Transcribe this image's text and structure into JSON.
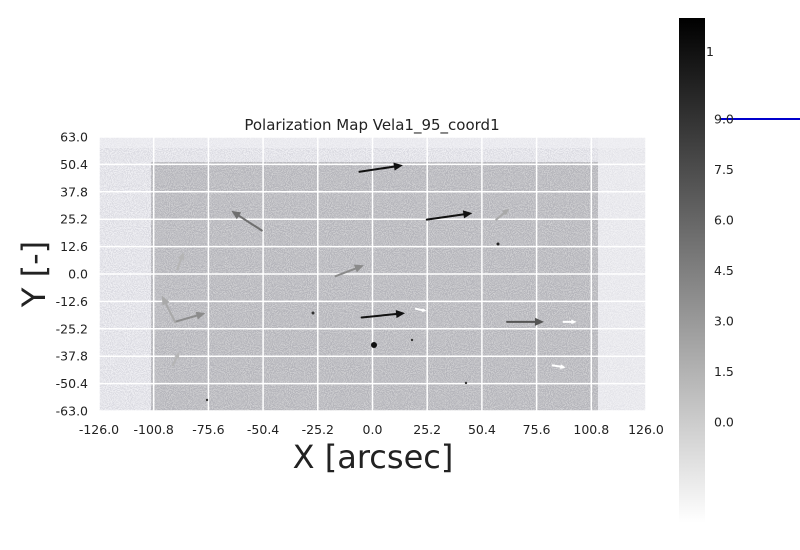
{
  "chart_data": {
    "type": "heatmap",
    "title": "Polarization Map Vela1_95_coord1",
    "xlabel": "X [arcsec]",
    "ylabel": "Y [-]",
    "xlim": [
      -126.0,
      126.0
    ],
    "ylim": [
      -63.0,
      63.0
    ],
    "x_ticks": [
      "-126.0",
      "-100.8",
      "-75.6",
      "-50.4",
      "-25.2",
      "0.0",
      "25.2",
      "50.4",
      "75.6",
      "100.8",
      "126.0"
    ],
    "y_ticks": [
      "63.0",
      "50.4",
      "37.8",
      "25.2",
      "12.6",
      "0.0",
      "-12.6",
      "-25.2",
      "-37.8",
      "-50.4",
      "-63.0"
    ],
    "colorbar": {
      "cmap": "gray_r",
      "range": [
        -3.0,
        12.0
      ],
      "ticks": [
        "0.0",
        "1.5",
        "3.0",
        "4.5",
        "6.0",
        "7.5",
        "9.0"
      ],
      "clipped_label": "1",
      "marker_value": 9.0,
      "marker_color": "#0000cc"
    },
    "vectors": [
      {
        "x": -6,
        "y": 47,
        "dx": 20,
        "dy": 3,
        "shade": "#111111"
      },
      {
        "x": 25,
        "y": 25,
        "dx": 21,
        "dy": 3,
        "shade": "#111111"
      },
      {
        "x": -5,
        "y": -20,
        "dx": 20,
        "dy": 2,
        "shade": "#111111"
      },
      {
        "x": 62,
        "y": -22,
        "dx": 17,
        "dy": 0,
        "shade": "#555555"
      },
      {
        "x": -51,
        "y": 20,
        "dx": -14,
        "dy": 9,
        "shade": "#6e6e6e"
      },
      {
        "x": -17,
        "y": -1,
        "dx": 13,
        "dy": 5,
        "shade": "#8a8a8a"
      },
      {
        "x": -91,
        "y": -22,
        "dx": 14,
        "dy": 4,
        "shade": "#8c8c8c"
      },
      {
        "x": -91,
        "y": -22,
        "dx": -6,
        "dy": 12,
        "shade": "#a9a9a9"
      },
      {
        "x": 20,
        "y": -16,
        "dx": 5,
        "dy": -1,
        "shade": "#ffffff"
      },
      {
        "x": 88,
        "y": -22,
        "dx": 6,
        "dy": 0,
        "shade": "#ffffff"
      },
      {
        "x": 83,
        "y": -42,
        "dx": 6,
        "dy": -1,
        "shade": "#ffffff"
      },
      {
        "x": 57,
        "y": 25,
        "dx": 6,
        "dy": 5,
        "shade": "#a9a9a9"
      },
      {
        "x": -90,
        "y": 2,
        "dx": 3,
        "dy": 8,
        "shade": "#b5b5b5"
      },
      {
        "x": -92,
        "y": -42,
        "dx": 3,
        "dy": 6,
        "shade": "#b5b5b5"
      }
    ],
    "grid": true
  }
}
